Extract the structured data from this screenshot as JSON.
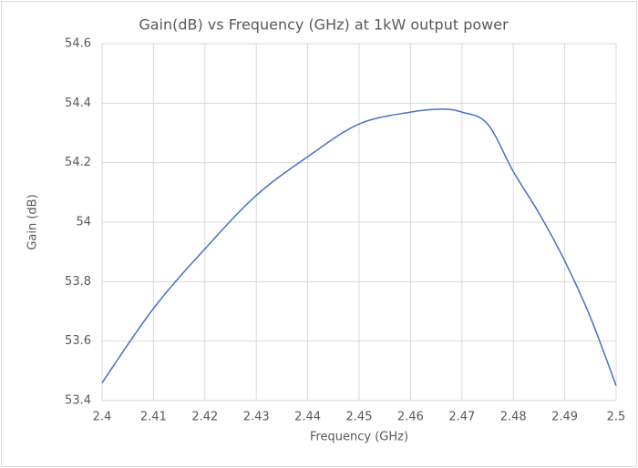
{
  "chart_data": {
    "type": "line",
    "title": "Gain(dB) vs Frequency (GHz) at 1kW  output power",
    "xlabel": "Frequency (GHz)",
    "ylabel": "Gain (dB)",
    "x": [
      2.4,
      2.41,
      2.42,
      2.43,
      2.44,
      2.45,
      2.46,
      2.466,
      2.47,
      2.475,
      2.48,
      2.485,
      2.49,
      2.495,
      2.5
    ],
    "series": [
      {
        "name": "Gain",
        "color": "#4472c4",
        "values": [
          53.46,
          53.71,
          53.91,
          54.09,
          54.22,
          54.33,
          54.37,
          54.38,
          54.37,
          54.33,
          54.17,
          54.03,
          53.87,
          53.68,
          53.45
        ]
      }
    ],
    "xlim": [
      2.4,
      2.5
    ],
    "xticks": [
      2.4,
      2.41,
      2.42,
      2.43,
      2.44,
      2.45,
      2.46,
      2.47,
      2.48,
      2.49,
      2.5
    ],
    "ylim": [
      53.4,
      54.6
    ],
    "yticks": [
      53.4,
      53.6,
      53.8,
      54,
      54.2,
      54.4,
      54.6
    ],
    "grid": true
  }
}
